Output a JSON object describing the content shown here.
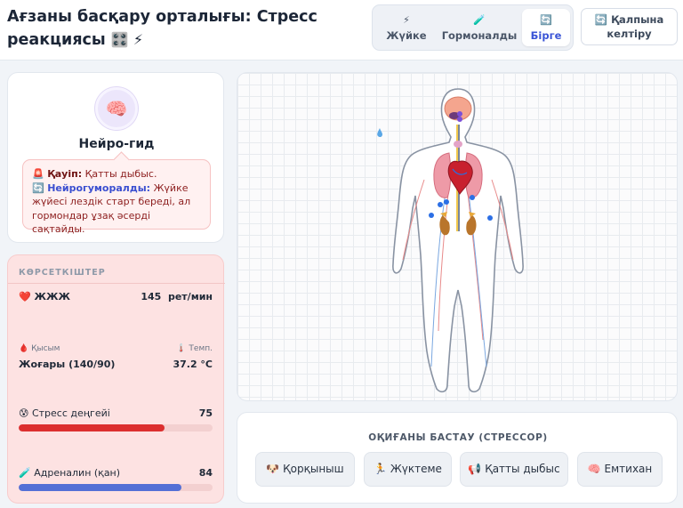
{
  "header": {
    "title_line1": "Ағзаны басқару орталығы: Стресс",
    "title_line2": "реакциясы",
    "title_emoji": "🎛️ ⚡"
  },
  "modes": [
    {
      "icon": "⚡",
      "label": "Жүйке"
    },
    {
      "icon": "🧪",
      "label": "Гормоналды"
    },
    {
      "icon": "🔄",
      "label": "Бірге"
    }
  ],
  "active_mode": "Бірге",
  "reset": {
    "icon": "🔄",
    "line1": "Қалпына",
    "line2": "келтіру"
  },
  "guide": {
    "avatar": "🧠",
    "name": "Нейро-гид",
    "threat_icon": "🚨",
    "threat_label": "Қауіп:",
    "threat_text": "Қатты дыбыс.",
    "neuro_icon": "🔄",
    "neuro_label": "Нейрогуморалды:",
    "neuro_text": "Жүйке жүйесі лездік старт береді, ал гормондар ұзақ әсерді сақтайды."
  },
  "stats": {
    "heading": "КӨРСЕТКІШТЕР",
    "heart_icon": "❤️",
    "hr_label": "ЖЖЖ",
    "hr_value": "145",
    "hr_unit": "рет/мин",
    "bp_icon": "🩸",
    "bp_label": "Қысым",
    "bp_value": "Жоғары (140/90)",
    "temp_icon": "🌡️",
    "temp_label": "Темп.",
    "temp_value": "37.2 °C",
    "stress_icon": "😰",
    "stress_label": "Стресс деңгейі",
    "stress_value": "75",
    "stress_fraction": 0.75,
    "adrenaline_icon": "🧪",
    "adrenaline_label": "Адреналин (қан)",
    "adrenaline_value": "84",
    "adrenaline_fraction": 0.84
  },
  "colors": {
    "accent": "#3a54d6",
    "stress_bar": "#dc2f2f",
    "adrenaline_bar": "#5470d6",
    "stats_bg": "#fde2e2"
  },
  "events": {
    "title": "ОҚИҒАНЫ БАСТАУ (СТРЕССОР)",
    "buttons": [
      {
        "icon": "🐶",
        "label": "Қорқыныш"
      },
      {
        "icon": "🏃",
        "label": "Жүктеме"
      },
      {
        "icon": "📢",
        "label": "Қатты дыбыс"
      },
      {
        "icon": "🧠",
        "label": "Емтихан"
      }
    ]
  }
}
